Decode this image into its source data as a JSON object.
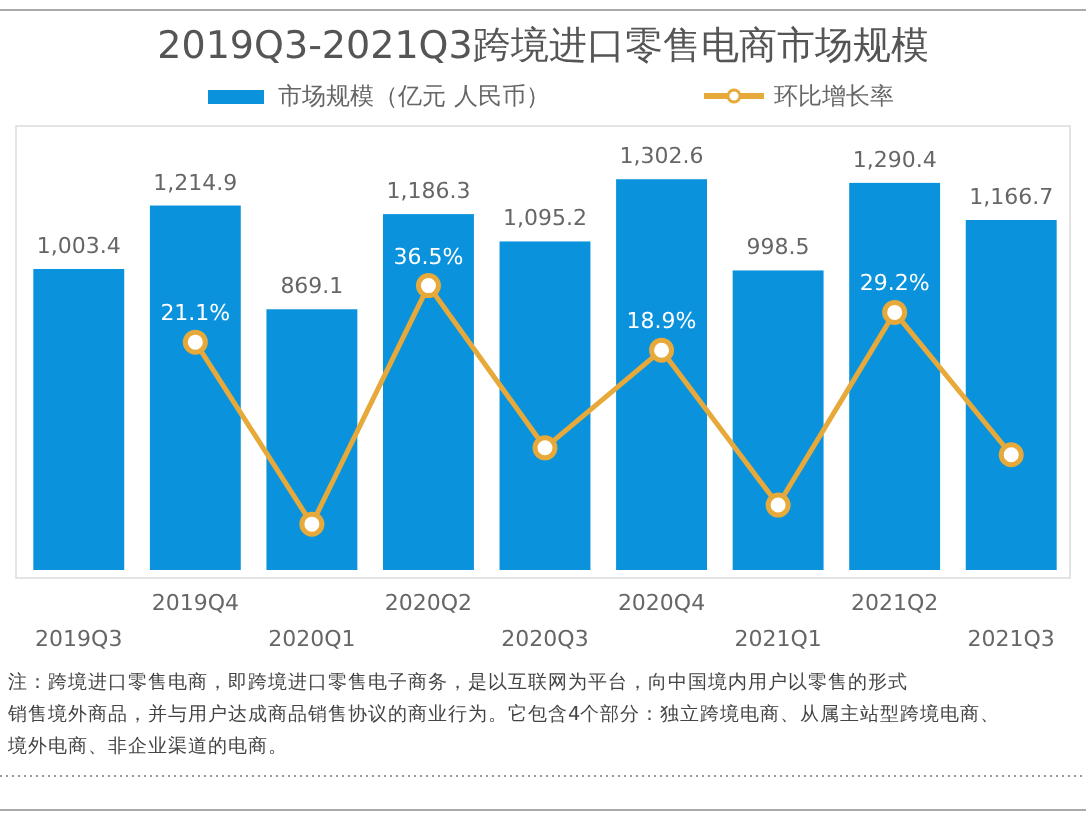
{
  "chart_data": {
    "type": "bar",
    "title": "2019Q3-2021Q3跨境进口零售电商市场规模",
    "categories": [
      "2019Q3",
      "2019Q4",
      "2020Q1",
      "2020Q2",
      "2020Q3",
      "2020Q4",
      "2021Q1",
      "2021Q2",
      "2021Q3"
    ],
    "series": [
      {
        "name": "市场规模（亿元 人民币）",
        "color": "#0a93dc",
        "values": [
          1003.4,
          1214.9,
          869.1,
          1186.3,
          1095.2,
          1302.6,
          998.5,
          1290.4,
          1166.7
        ],
        "value_labels": [
          "1,003.4",
          "1,214.9",
          "869.1",
          "1,186.3",
          "1,095.2",
          "1,302.6",
          "998.5",
          "1,290.4",
          "1,166.7"
        ]
      },
      {
        "name": "环比增长率",
        "type": "line",
        "axis": "y2",
        "color": "#e6a93a",
        "marker": "circle",
        "values": [
          null,
          21.1,
          -28.5,
          36.5,
          -7.7,
          18.9,
          -23.3,
          29.2,
          -9.6
        ],
        "value_labels": [
          null,
          "21.1%",
          null,
          "36.5%",
          null,
          "18.9%",
          null,
          "29.2%",
          null
        ]
      }
    ],
    "ylim": [
      0,
      1480
    ],
    "y2lim": [
      -41,
      80
    ],
    "tick_labels": "x",
    "legend": "top",
    "annotations": [
      "注：跨境进口零售电商，即跨境进口零售电子商务，是以互联网为平台，向中国境内用户以零售的形式",
      "销售境外商品，并与用户达成商品销售协议的商业行为。它包含4个部分：独立跨境电商、从属主站型跨境电商、",
      "境外电商、非企业渠道的电商。"
    ]
  }
}
